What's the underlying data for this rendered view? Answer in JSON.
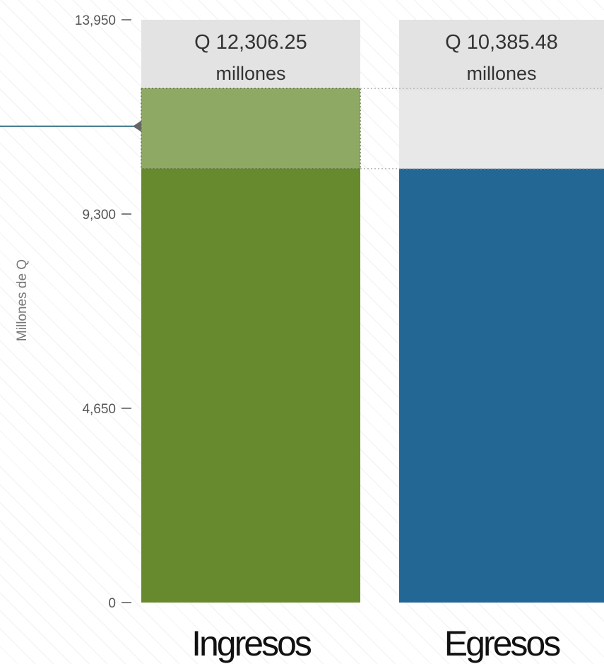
{
  "chart_data": {
    "type": "bar",
    "title": "",
    "xlabel": "",
    "ylabel": "Millones de Q",
    "ylim": [
      0,
      13950
    ],
    "yticks": [
      0,
      4650,
      9300,
      13950
    ],
    "ytick_labels": [
      "0",
      "4,650",
      "9,300",
      "13,950"
    ],
    "categories": [
      "Ingresos",
      "Egresos"
    ],
    "values": [
      12306.25,
      10385.48
    ],
    "value_labels": [
      "Q 12,306.25",
      "Q 10,385.48"
    ],
    "unit_label": "millones",
    "colors": [
      "#688a2e",
      "#236795"
    ],
    "difference_highlight_color": "#8ea963",
    "reference_line_color": "#2f6e86",
    "reference_line_value": 11400,
    "grid": false
  }
}
